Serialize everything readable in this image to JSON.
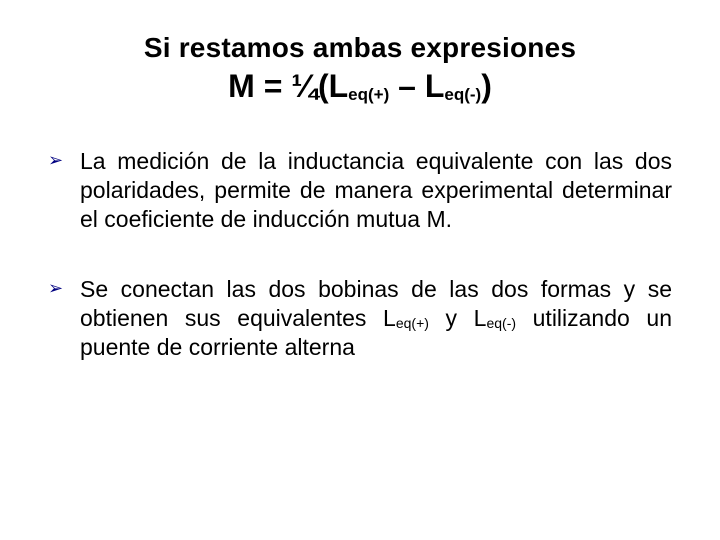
{
  "title": "Si restamos ambas expresiones",
  "equation": {
    "lhs": "M = ",
    "frac": "¼",
    "open": "(L",
    "sub1": "eq(+)",
    "mid": " – L",
    "sub2": "eq(-)",
    "close": ")"
  },
  "bullets": [
    {
      "text": "La medición de la inductancia equivalente con las dos polaridades, permite de manera experimental determinar el coeficiente de inducción mutua M."
    },
    {
      "pre": "Se conectan las dos bobinas de las dos formas y se obtienen sus equivalentes L",
      "sub1": "eq(+)",
      "mid": " y L",
      "sub2": "eq(-)",
      "post": " utilizando un puente de corriente alterna"
    }
  ],
  "colors": {
    "bullet_marker": "#000080",
    "text": "#000000",
    "background": "#ffffff"
  },
  "typography": {
    "title_fontsize": 28,
    "equation_fontsize": 32,
    "body_fontsize": 23,
    "subscript_fontsize_eq": 17,
    "subscript_fontsize_body": 14,
    "font_family": "Arial"
  }
}
